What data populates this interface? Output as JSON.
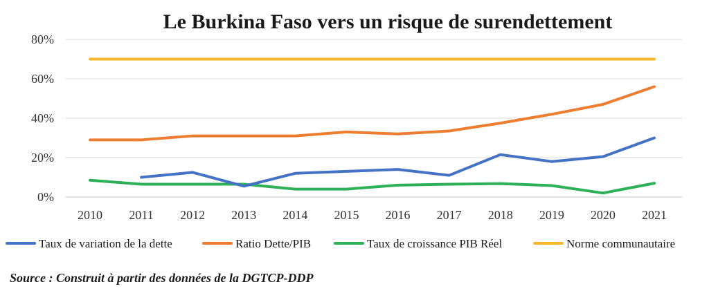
{
  "chart_data": {
    "type": "line",
    "title": "Le Burkina Faso vers un risque de surendettement",
    "xlabel": "",
    "ylabel": "",
    "categories": [
      "2010",
      "2011",
      "2012",
      "2013",
      "2014",
      "2015",
      "2016",
      "2017",
      "2018",
      "2019",
      "2020",
      "2021"
    ],
    "ylim": [
      0,
      80
    ],
    "yticks": [
      "0%",
      "20%",
      "40%",
      "60%",
      "80%"
    ],
    "ytick_values": [
      0,
      20,
      40,
      60,
      80
    ],
    "grid": true,
    "legend_position": "bottom",
    "series": [
      {
        "name": "Taux de variation de la dette",
        "color": "#4472C4",
        "values": [
          null,
          10,
          12.5,
          5.5,
          12,
          13,
          14,
          11,
          21.5,
          18,
          20.5,
          30
        ]
      },
      {
        "name": "Ratio Dette/PIB",
        "color": "#ED7D31",
        "values": [
          29,
          29,
          31,
          31,
          31,
          33,
          32,
          33.5,
          37.5,
          42,
          47,
          56
        ]
      },
      {
        "name": "Taux de croissance PIB Réel",
        "color": "#2DB057",
        "values": [
          8.5,
          6.5,
          6.5,
          6.5,
          4,
          4,
          6,
          6.5,
          6.8,
          5.8,
          2,
          7
        ]
      },
      {
        "name": "Norme communautaire",
        "color": "#F5B72C",
        "values": [
          70,
          70,
          70,
          70,
          70,
          70,
          70,
          70,
          70,
          70,
          70,
          70
        ]
      }
    ]
  },
  "source_text": "Source : Construit à partir des données de la DGTCP-DDP"
}
